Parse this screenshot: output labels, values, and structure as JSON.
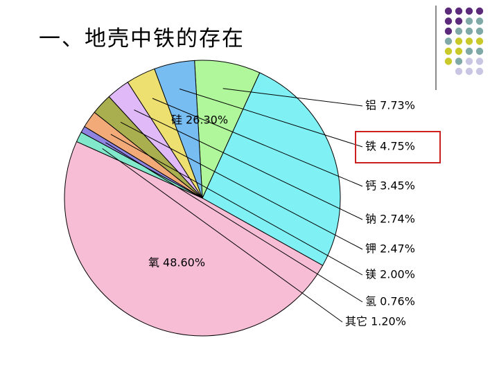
{
  "slide": {
    "title": "一、地壳中铁的存在",
    "decor_colors": {
      "purple": "#5c2a7a",
      "teal": "#7fa9a7",
      "yellow": "#c9c92a",
      "lavender": "#c9c6e3",
      "line": "#8a8a8a"
    }
  },
  "chart_data": {
    "type": "pie",
    "title": "",
    "slices": [
      {
        "label": "氧",
        "value": 48.6,
        "display": "48.60%",
        "color": "#f6bdd4"
      },
      {
        "label": "硅",
        "value": 26.3,
        "display": "26.30%",
        "color": "#7ff0f4"
      },
      {
        "label": "铝",
        "value": 7.73,
        "display": "7.73%",
        "color": "#aff79a"
      },
      {
        "label": "铁",
        "value": 4.75,
        "display": "4.75%",
        "color": "#78bdf2"
      },
      {
        "label": "钙",
        "value": 3.45,
        "display": "3.45%",
        "color": "#ede070"
      },
      {
        "label": "钠",
        "value": 2.74,
        "display": "2.74%",
        "color": "#dfb9f8"
      },
      {
        "label": "钾",
        "value": 2.47,
        "display": "2.47%",
        "color": "#a9ae4f"
      },
      {
        "label": "镁",
        "value": 2.0,
        "display": "2.00%",
        "color": "#f2aa78"
      },
      {
        "label": "氢",
        "value": 0.76,
        "display": "0.76%",
        "color": "#8e83e0"
      },
      {
        "label": "其它",
        "value": 1.2,
        "display": "1.20%",
        "color": "#82e8cc"
      }
    ],
    "highlight": {
      "label": "铁",
      "color": "#cc1f1f"
    }
  }
}
